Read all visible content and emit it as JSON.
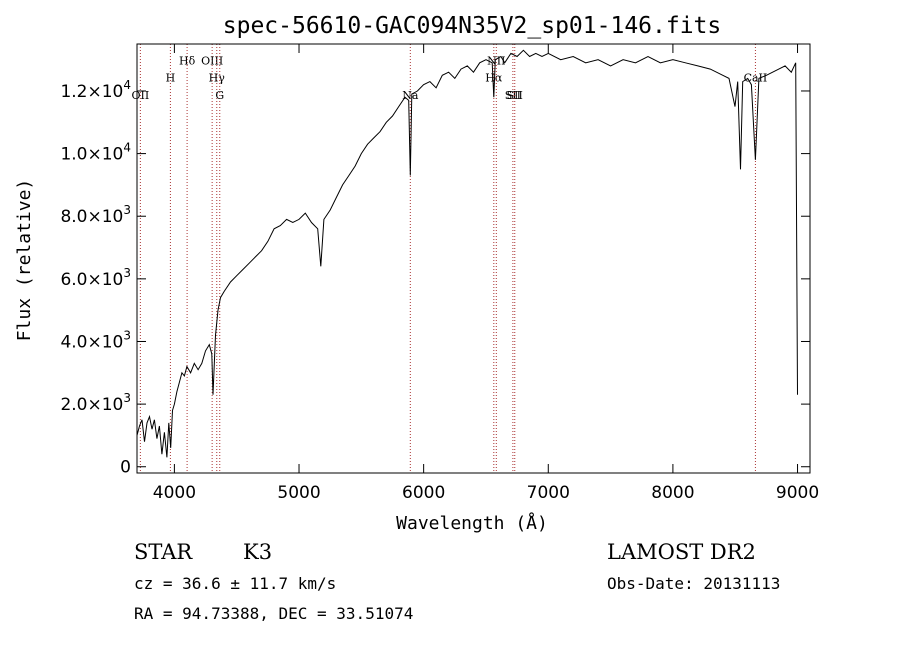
{
  "chart_data": {
    "type": "line",
    "title": "spec-56610-GAC094N35V2_sp01-146.fits",
    "xlabel": "Wavelength (Å)",
    "ylabel": "Flux (relative)",
    "xlim": [
      3700,
      9100
    ],
    "ylim": [
      -200,
      13500
    ],
    "x_ticks": [
      {
        "value": 4000,
        "label": "4000"
      },
      {
        "value": 5000,
        "label": "5000"
      },
      {
        "value": 6000,
        "label": "6000"
      },
      {
        "value": 7000,
        "label": "7000"
      },
      {
        "value": 8000,
        "label": "8000"
      },
      {
        "value": 9000,
        "label": "9000"
      }
    ],
    "y_ticks": [
      {
        "value": 0,
        "label": "0",
        "exp": ""
      },
      {
        "value": 2000,
        "label": "2.0×10",
        "exp": "3"
      },
      {
        "value": 4000,
        "label": "4.0×10",
        "exp": "3"
      },
      {
        "value": 6000,
        "label": "6.0×10",
        "exp": "3"
      },
      {
        "value": 8000,
        "label": "8.0×10",
        "exp": "3"
      },
      {
        "value": 10000,
        "label": "1.0×10",
        "exp": "4"
      },
      {
        "value": 12000,
        "label": "1.2×10",
        "exp": "4"
      }
    ],
    "series": [
      {
        "name": "spectrum",
        "color": "#000000",
        "points": [
          [
            3700,
            1000
          ],
          [
            3720,
            1300
          ],
          [
            3740,
            1500
          ],
          [
            3760,
            800
          ],
          [
            3780,
            1400
          ],
          [
            3800,
            1600
          ],
          [
            3820,
            1200
          ],
          [
            3840,
            1500
          ],
          [
            3860,
            900
          ],
          [
            3880,
            1300
          ],
          [
            3900,
            400
          ],
          [
            3920,
            1100
          ],
          [
            3940,
            300
          ],
          [
            3955,
            1400
          ],
          [
            3970,
            600
          ],
          [
            3985,
            1800
          ],
          [
            4000,
            2000
          ],
          [
            4020,
            2400
          ],
          [
            4040,
            2700
          ],
          [
            4060,
            3000
          ],
          [
            4080,
            2900
          ],
          [
            4100,
            3200
          ],
          [
            4130,
            3000
          ],
          [
            4160,
            3300
          ],
          [
            4190,
            3100
          ],
          [
            4220,
            3300
          ],
          [
            4250,
            3700
          ],
          [
            4280,
            3900
          ],
          [
            4300,
            3600
          ],
          [
            4310,
            2300
          ],
          [
            4330,
            4200
          ],
          [
            4350,
            5000
          ],
          [
            4370,
            5400
          ],
          [
            4400,
            5600
          ],
          [
            4450,
            5900
          ],
          [
            4500,
            6100
          ],
          [
            4550,
            6300
          ],
          [
            4600,
            6500
          ],
          [
            4650,
            6700
          ],
          [
            4700,
            6900
          ],
          [
            4750,
            7200
          ],
          [
            4800,
            7600
          ],
          [
            4850,
            7700
          ],
          [
            4900,
            7900
          ],
          [
            4950,
            7800
          ],
          [
            5000,
            7900
          ],
          [
            5050,
            8100
          ],
          [
            5100,
            7800
          ],
          [
            5150,
            7600
          ],
          [
            5175,
            6400
          ],
          [
            5200,
            7900
          ],
          [
            5250,
            8200
          ],
          [
            5300,
            8600
          ],
          [
            5350,
            9000
          ],
          [
            5400,
            9300
          ],
          [
            5450,
            9600
          ],
          [
            5500,
            10000
          ],
          [
            5550,
            10300
          ],
          [
            5600,
            10500
          ],
          [
            5650,
            10700
          ],
          [
            5700,
            11000
          ],
          [
            5750,
            11200
          ],
          [
            5800,
            11500
          ],
          [
            5850,
            11800
          ],
          [
            5880,
            11700
          ],
          [
            5893,
            9300
          ],
          [
            5905,
            11900
          ],
          [
            5950,
            12000
          ],
          [
            6000,
            12200
          ],
          [
            6050,
            12300
          ],
          [
            6100,
            12100
          ],
          [
            6150,
            12500
          ],
          [
            6200,
            12600
          ],
          [
            6250,
            12400
          ],
          [
            6300,
            12700
          ],
          [
            6350,
            12800
          ],
          [
            6400,
            12600
          ],
          [
            6450,
            12900
          ],
          [
            6500,
            13000
          ],
          [
            6550,
            12900
          ],
          [
            6563,
            11800
          ],
          [
            6575,
            13000
          ],
          [
            6620,
            13100
          ],
          [
            6650,
            12900
          ],
          [
            6700,
            13200
          ],
          [
            6750,
            13100
          ],
          [
            6800,
            13300
          ],
          [
            6850,
            13100
          ],
          [
            6900,
            13200
          ],
          [
            6950,
            13100
          ],
          [
            7000,
            13200
          ],
          [
            7100,
            13000
          ],
          [
            7200,
            13100
          ],
          [
            7300,
            12900
          ],
          [
            7400,
            13000
          ],
          [
            7500,
            12800
          ],
          [
            7600,
            13000
          ],
          [
            7700,
            12900
          ],
          [
            7800,
            13100
          ],
          [
            7900,
            12900
          ],
          [
            8000,
            13000
          ],
          [
            8100,
            12900
          ],
          [
            8200,
            12800
          ],
          [
            8300,
            12700
          ],
          [
            8400,
            12500
          ],
          [
            8450,
            12400
          ],
          [
            8498,
            11500
          ],
          [
            8520,
            12300
          ],
          [
            8542,
            9500
          ],
          [
            8560,
            12300
          ],
          [
            8600,
            12400
          ],
          [
            8630,
            12200
          ],
          [
            8662,
            9800
          ],
          [
            8690,
            12400
          ],
          [
            8750,
            12500
          ],
          [
            8800,
            12600
          ],
          [
            8850,
            12700
          ],
          [
            8900,
            12800
          ],
          [
            8950,
            12600
          ],
          [
            8985,
            12900
          ],
          [
            9000,
            2300
          ]
        ]
      }
    ],
    "line_markers": [
      {
        "label": "H",
        "x": 3968,
        "label_y": 12300
      },
      {
        "label": "Hδ",
        "x": 4102,
        "label_y": 12850
      },
      {
        "label": "OIII",
        "x": 4303,
        "label_y": 12850
      },
      {
        "label": "Hγ",
        "x": 4340,
        "label_y": 12300
      },
      {
        "label": "G",
        "x": 4364,
        "label_y": 11750
      },
      {
        "label": "OII",
        "x": 3727,
        "label_y": 11750
      },
      {
        "label": "Na",
        "x": 5893,
        "label_y": 11750
      },
      {
        "label": "Hα",
        "x": 6563,
        "label_y": 12300
      },
      {
        "label": "NII",
        "x": 6583,
        "label_y": 12850
      },
      {
        "label": "SII",
        "x": 6716,
        "label_y": 11750
      },
      {
        "label": "SII",
        "x": 6731,
        "label_y": 11750
      },
      {
        "label": "CaII",
        "x": 8662,
        "label_y": 12300
      }
    ]
  },
  "info": {
    "class": "STAR",
    "subclass": "K3",
    "redshift": "cz =  36.6 ± 11.7 km/s",
    "coords": "RA =  94.73388, DEC =  33.51074",
    "survey": "LAMOST DR2",
    "obs_date": "Obs-Date: 20131113"
  }
}
